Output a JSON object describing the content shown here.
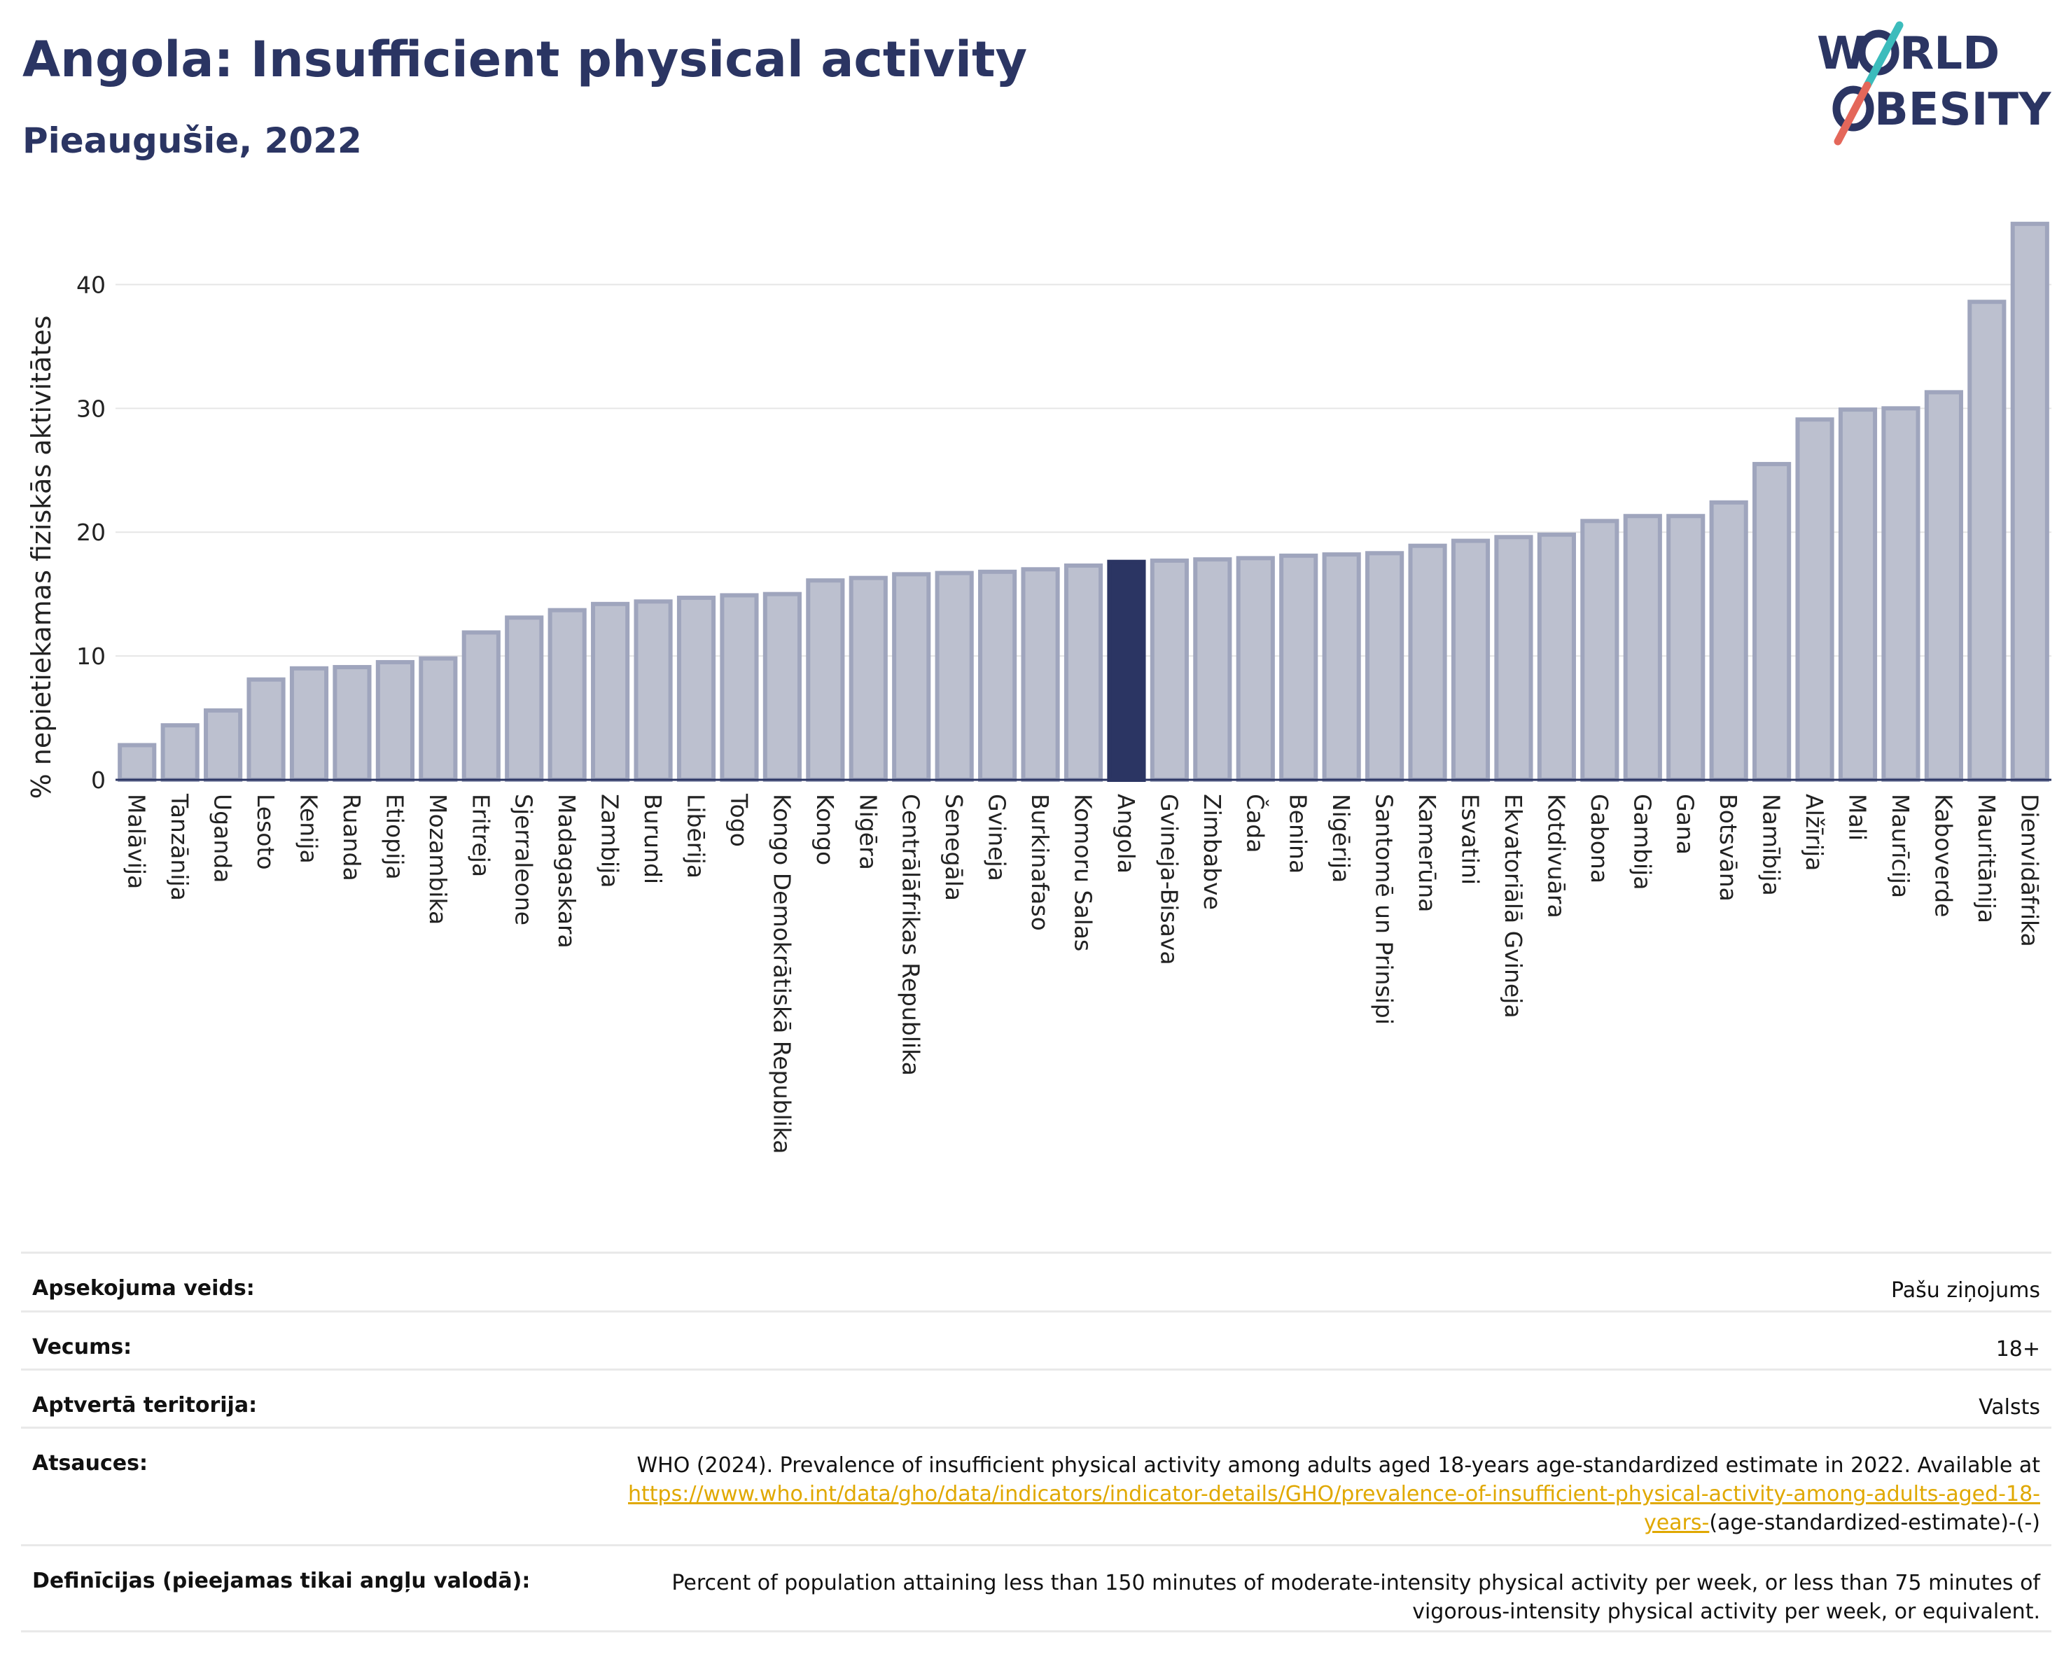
{
  "header": {
    "title": "Angola: Insufficient physical activity",
    "subtitle": "Pieaugušie, 2022",
    "logo_text_1": "W",
    "logo_text_2": "RLD",
    "logo_text_3": "BESITY"
  },
  "colors": {
    "bar": "#bcc0cf",
    "bar_edge": "#9fa5bd",
    "highlight": "#2b3563",
    "grid": "#e6e6e6",
    "logo_teal": "#3cbcbc",
    "logo_red": "#e4675a"
  },
  "chart_data": {
    "type": "bar",
    "title": "Angola: Insufficient physical activity",
    "subtitle": "Pieaugušie, 2022",
    "ylabel": "% nepietiekamas fiziskās aktivitātes",
    "xlabel": "",
    "ylim": [
      0,
      45
    ],
    "yticks": [
      0,
      10,
      20,
      30,
      40
    ],
    "grid": true,
    "highlight": "Angola",
    "categories": [
      "Malāvija",
      "Tanzānija",
      "Uganda",
      "Lesoto",
      "Kenija",
      "Ruanda",
      "Etiopija",
      "Mozambika",
      "Eritreja",
      "Sjerraleone",
      "Madagaskara",
      "Zambija",
      "Burundi",
      "Libērija",
      "Togo",
      "Kongo Demokrātiskā Republika",
      "Kongo",
      "Nigēra",
      "Centrālāfrikas Republika",
      "Senegāla",
      "Gvineja",
      "Burkinafaso",
      "Komoru Salas",
      "Angola",
      "Gvineja-Bisava",
      "Zimbabve",
      "Čada",
      "Benina",
      "Nigērija",
      "Santomē un Prinsipi",
      "Kamerūna",
      "Esvatini",
      "Ekvatoriālā Gvineja",
      "Kotdivuāra",
      "Gabona",
      "Gambija",
      "Gana",
      "Botsvāna",
      "Namībija",
      "Alžīrija",
      "Mali",
      "Maurīcija",
      "Kaboverde",
      "Mauritānija",
      "Dienvidāfrika"
    ],
    "values": [
      2.8,
      4.4,
      5.6,
      8.1,
      9.0,
      9.1,
      9.5,
      9.8,
      11.9,
      13.1,
      13.7,
      14.2,
      14.4,
      14.7,
      14.9,
      15.0,
      16.1,
      16.3,
      16.6,
      16.7,
      16.8,
      17.0,
      17.3,
      17.6,
      17.7,
      17.8,
      17.9,
      18.1,
      18.2,
      18.3,
      18.9,
      19.3,
      19.6,
      19.8,
      20.9,
      21.3,
      21.3,
      22.4,
      25.5,
      29.1,
      29.9,
      30.0,
      31.3,
      38.6,
      44.9
    ]
  },
  "meta": {
    "rows": [
      {
        "key": "Apsekojuma veids:",
        "value": "Pašu ziņojums"
      },
      {
        "key": "Vecums:",
        "value": "18+"
      },
      {
        "key": "Aptvertā teritorija:",
        "value": "Valsts"
      }
    ],
    "sources_key": "Atsauces:",
    "sources_text": "WHO (2024). Prevalence of insufficient physical activity among adults aged 18-years age-standardized estimate in 2022. Available at",
    "sources_link": "https://www.who.int/data/gho/data/indicators/indicator-details/GHO/prevalence-of-insufficient-physical-activity-among-adults-aged-18-years-",
    "sources_tail": "(age-standardized-estimate)-(-)",
    "definitions_key": "Definīcijas (pieejamas tikai angļu valodā):",
    "definitions_text": "Percent of population attaining less than 150 minutes of moderate-intensity physical activity per week, or less than 75 minutes of vigorous-intensity physical activity per week, or equivalent."
  }
}
